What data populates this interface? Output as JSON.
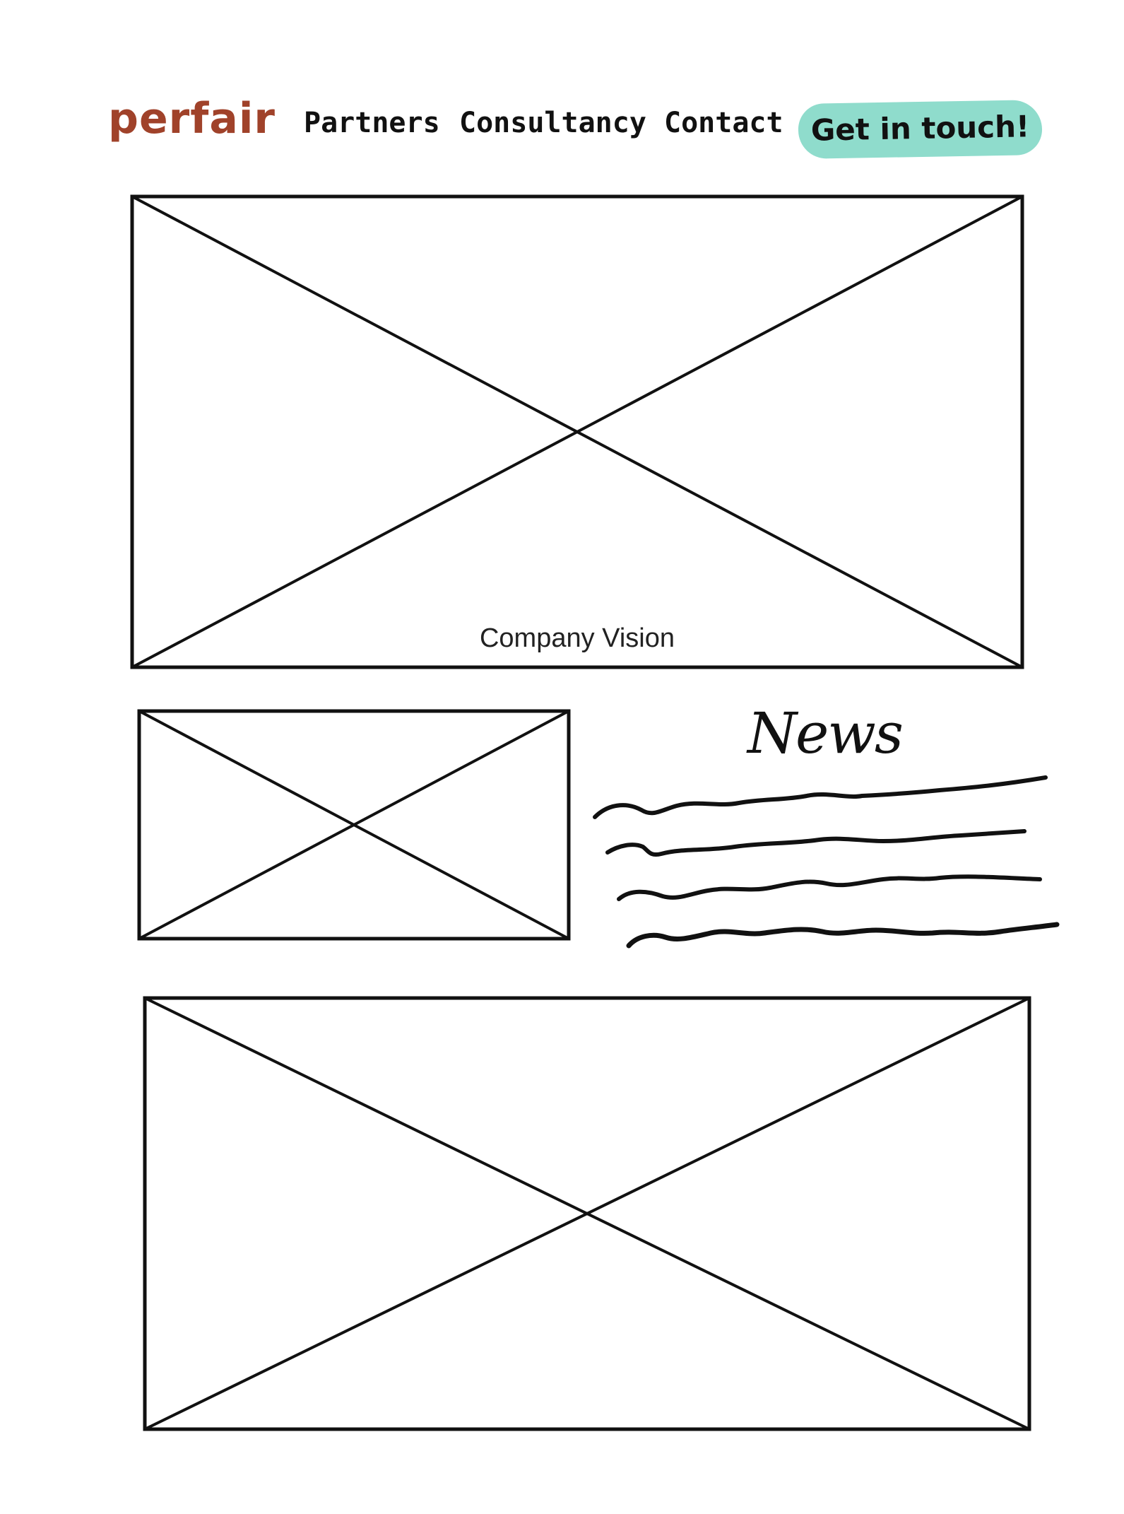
{
  "header": {
    "logo_text": "perfair",
    "nav": [
      {
        "label": "Partners"
      },
      {
        "label": "Consultancy"
      },
      {
        "label": "Contact"
      }
    ],
    "cta_label": "Get in touch!"
  },
  "hero": {
    "caption": "Company Vision"
  },
  "news": {
    "heading": "News"
  },
  "colors": {
    "brand": "#a0422a",
    "cta_background": "#8fdccc",
    "ink": "#111111"
  },
  "icons": {
    "image_placeholder": "crossed-box-image-placeholder",
    "text_placeholder": "squiggle-line-text-placeholder"
  }
}
